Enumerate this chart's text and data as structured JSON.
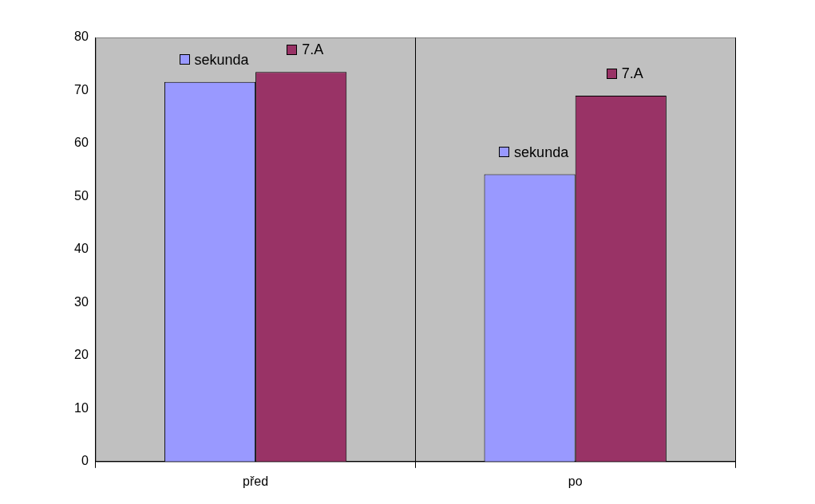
{
  "chart_data": {
    "type": "bar",
    "categories": [
      "před",
      "po"
    ],
    "series": [
      {
        "name": "sekunda",
        "color": "#9999ff",
        "values": [
          71.6,
          54.2
        ]
      },
      {
        "name": "7.A",
        "color": "#993366",
        "values": [
          73.5,
          69.0
        ]
      }
    ],
    "ylim": [
      0,
      80
    ],
    "yticks": [
      0,
      10,
      20,
      30,
      40,
      50,
      60,
      70,
      80
    ],
    "grid": "x",
    "legend": "top"
  }
}
